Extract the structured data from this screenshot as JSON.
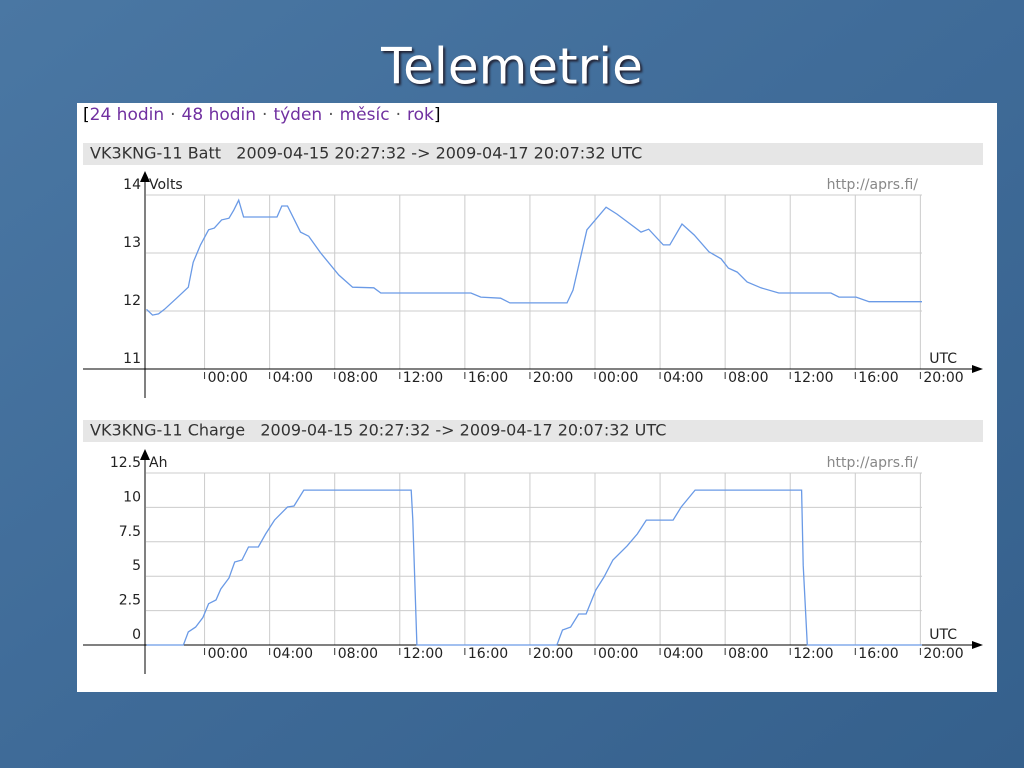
{
  "slide_title": "Telemetrie",
  "nav": {
    "open": "[",
    "links": [
      "24 hodin",
      "48 hodin",
      "týden",
      "měsíc",
      "rok"
    ],
    "separator": "·",
    "close": "]"
  },
  "chart_data": [
    {
      "type": "line",
      "title": "VK3KNG-11 Batt   2009-04-15 20:27:32 -> 2009-04-17 20:07:32 UTC",
      "y_label": "Volts",
      "x_label": "UTC",
      "watermark": "http://aprs.fi/",
      "xlim": [
        20.4,
        68.1
      ],
      "ylim": [
        11,
        14
      ],
      "yticks": [
        11,
        12,
        13,
        14
      ],
      "xticks": [
        {
          "value": 24,
          "label": "00:00"
        },
        {
          "value": 28,
          "label": "04:00"
        },
        {
          "value": 32,
          "label": "08:00"
        },
        {
          "value": 36,
          "label": "12:00"
        },
        {
          "value": 40,
          "label": "16:00"
        },
        {
          "value": 44,
          "label": "20:00"
        },
        {
          "value": 48,
          "label": "00:00"
        },
        {
          "value": 52,
          "label": "04:00"
        },
        {
          "value": 56,
          "label": "08:00"
        },
        {
          "value": 60,
          "label": "12:00"
        },
        {
          "value": 64,
          "label": "16:00"
        },
        {
          "value": 68,
          "label": "20:00"
        }
      ],
      "grid": true,
      "x": [
        20.43,
        20.8,
        21.17,
        21.54,
        22.28,
        23.0,
        23.3,
        23.75,
        24.25,
        24.6,
        25.05,
        25.5,
        25.8,
        26.1,
        26.4,
        28.45,
        28.75,
        29.1,
        29.9,
        30.4,
        31.14,
        32.25,
        33.1,
        34.4,
        34.83,
        40.37,
        40.98,
        42.2,
        42.77,
        46.28,
        46.65,
        47.5,
        48.68,
        49.35,
        50.83,
        51.3,
        52.2,
        52.6,
        53.35,
        54.1,
        55.0,
        55.75,
        56.2,
        56.74,
        57.35,
        58.2,
        59.3,
        62.5,
        63.0,
        64.05,
        64.85,
        68.1
      ],
      "series": [
        {
          "color": "#6a9ae6",
          "values": [
            12.03,
            11.93,
            11.95,
            12.03,
            12.22,
            12.41,
            12.84,
            13.14,
            13.4,
            13.43,
            13.57,
            13.6,
            13.74,
            13.91,
            13.62,
            13.62,
            13.81,
            13.81,
            13.36,
            13.29,
            13.0,
            12.62,
            12.41,
            12.4,
            12.31,
            12.31,
            12.24,
            12.22,
            12.14,
            12.14,
            12.36,
            13.4,
            13.79,
            13.67,
            13.36,
            13.41,
            13.14,
            13.14,
            13.5,
            13.31,
            13.02,
            12.9,
            12.74,
            12.67,
            12.5,
            12.4,
            12.31,
            12.31,
            12.24,
            12.24,
            12.16,
            12.16
          ]
        }
      ]
    },
    {
      "type": "line",
      "title": "VK3KNG-11 Charge   2009-04-15 20:27:32 -> 2009-04-17 20:07:32 UTC",
      "y_label": "Ah",
      "x_label": "UTC",
      "watermark": "http://aprs.fi/",
      "xlim": [
        20.4,
        68.1
      ],
      "ylim": [
        0,
        12.5
      ],
      "yticks": [
        0,
        2.5,
        5,
        7.5,
        10,
        12.5
      ],
      "xticks": [
        {
          "value": 24,
          "label": "00:00"
        },
        {
          "value": 28,
          "label": "04:00"
        },
        {
          "value": 32,
          "label": "08:00"
        },
        {
          "value": 36,
          "label": "12:00"
        },
        {
          "value": 40,
          "label": "16:00"
        },
        {
          "value": 44,
          "label": "20:00"
        },
        {
          "value": 48,
          "label": "00:00"
        },
        {
          "value": 52,
          "label": "04:00"
        },
        {
          "value": 56,
          "label": "08:00"
        },
        {
          "value": 60,
          "label": "12:00"
        },
        {
          "value": 64,
          "label": "16:00"
        },
        {
          "value": 68,
          "label": "20:00"
        }
      ],
      "grid": true,
      "x": [
        20.43,
        22.7,
        23.0,
        23.45,
        23.9,
        24.25,
        24.7,
        25.0,
        25.5,
        25.85,
        26.3,
        26.7,
        27.3,
        27.75,
        28.3,
        29.1,
        29.5,
        30.1,
        36.7,
        36.8,
        37.05,
        45.66,
        46.0,
        46.5,
        47.0,
        47.45,
        48.05,
        48.55,
        49.1,
        49.97,
        50.6,
        51.15,
        52.8,
        53.3,
        54.15,
        60.7,
        60.8,
        61.05,
        68.1
      ],
      "series": [
        {
          "color": "#6a9ae6",
          "values": [
            0,
            0,
            0.95,
            1.3,
            2.0,
            3.0,
            3.27,
            4.07,
            4.87,
            6.03,
            6.18,
            7.12,
            7.12,
            8.07,
            9.08,
            10.03,
            10.1,
            11.26,
            11.26,
            9.1,
            0,
            0,
            1.09,
            1.3,
            2.25,
            2.25,
            4.0,
            4.94,
            6.18,
            7.2,
            8.07,
            9.08,
            9.08,
            10.03,
            11.26,
            11.26,
            5.8,
            0,
            0
          ]
        }
      ]
    }
  ]
}
